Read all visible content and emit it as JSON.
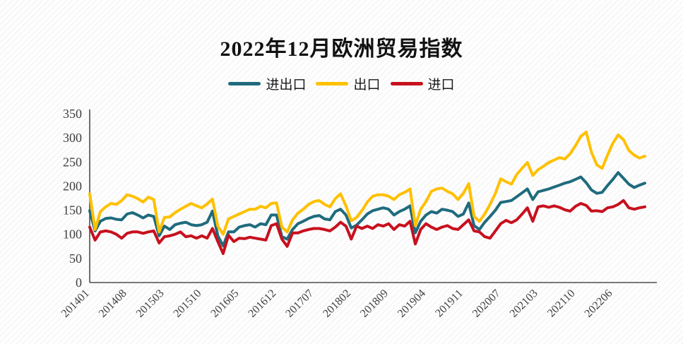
{
  "chart_data": {
    "type": "line",
    "title": "2022年12月欧洲贸易指数",
    "legend_position": "top",
    "grid": false,
    "axis_color": "#4d4d4d",
    "ylim": [
      0,
      350
    ],
    "yticks": [
      0,
      50,
      100,
      150,
      200,
      250,
      300,
      350
    ],
    "xtick_every": 7,
    "xtick_labels_shown": [
      "201401",
      "201408",
      "201503",
      "201510",
      "201605",
      "201612",
      "201707",
      "201802",
      "201809",
      "201904",
      "201911",
      "202007",
      "202103",
      "202110",
      "202206"
    ],
    "categories": [
      "201401",
      "201402",
      "201403",
      "201404",
      "201405",
      "201406",
      "201407",
      "201408",
      "201409",
      "201410",
      "201411",
      "201412",
      "201501",
      "201502",
      "201503",
      "201504",
      "201505",
      "201506",
      "201507",
      "201508",
      "201509",
      "201510",
      "201511",
      "201512",
      "201601",
      "201602",
      "201603",
      "201604",
      "201605",
      "201606",
      "201607",
      "201608",
      "201609",
      "201610",
      "201611",
      "201612",
      "201701",
      "201702",
      "201703",
      "201704",
      "201705",
      "201706",
      "201707",
      "201708",
      "201709",
      "201710",
      "201711",
      "201712",
      "201801",
      "201802",
      "201803",
      "201804",
      "201805",
      "201806",
      "201807",
      "201808",
      "201809",
      "201810",
      "201811",
      "201812",
      "201901",
      "201902",
      "201903",
      "201904",
      "201905",
      "201906",
      "201907",
      "201908",
      "201909",
      "201910",
      "201911",
      "201912",
      "202002",
      "202003",
      "202004",
      "202005",
      "202006",
      "202007",
      "202008",
      "202009",
      "202010",
      "202011",
      "202012",
      "202102",
      "202103",
      "202104",
      "202105",
      "202106",
      "202107",
      "202108",
      "202109",
      "202110",
      "202111",
      "202112",
      "202202",
      "202203",
      "202204",
      "202205",
      "202206",
      "202207",
      "202208",
      "202209",
      "202210",
      "202211",
      "202212"
    ],
    "series": [
      {
        "name": "进出口",
        "color": "#1F6B7D",
        "values": [
          149,
          107,
          127,
          133,
          134,
          131,
          130,
          142,
          145,
          140,
          134,
          140,
          137,
          97,
          117,
          110,
          120,
          123,
          125,
          120,
          118,
          120,
          125,
          148,
          97,
          76,
          105,
          105,
          115,
          118,
          120,
          115,
          122,
          120,
          140,
          140,
          95,
          90,
          110,
          122,
          127,
          133,
          137,
          139,
          132,
          130,
          147,
          152,
          140,
          113,
          119,
          130,
          142,
          149,
          152,
          155,
          152,
          140,
          147,
          152,
          159,
          103,
          127,
          140,
          147,
          144,
          152,
          150,
          147,
          137,
          142,
          165,
          118,
          110,
          125,
          137,
          150,
          166,
          168,
          170,
          178,
          186,
          194,
          172,
          188,
          191,
          194,
          198,
          202,
          206,
          209,
          214,
          219,
          207,
          192,
          185,
          187,
          201,
          214,
          228,
          216,
          204,
          197,
          202,
          206
        ]
      },
      {
        "name": "出口",
        "color": "#FFC000",
        "values": [
          184,
          110,
          147,
          157,
          164,
          162,
          170,
          182,
          179,
          174,
          167,
          177,
          172,
          105,
          135,
          136,
          145,
          152,
          158,
          164,
          159,
          155,
          163,
          173,
          117,
          100,
          132,
          137,
          142,
          147,
          152,
          152,
          158,
          155,
          164,
          165,
          115,
          105,
          130,
          144,
          152,
          162,
          168,
          170,
          162,
          157,
          174,
          184,
          159,
          128,
          135,
          149,
          167,
          179,
          182,
          182,
          179,
          172,
          182,
          187,
          194,
          118,
          152,
          168,
          189,
          194,
          196,
          189,
          184,
          172,
          185,
          205,
          137,
          127,
          142,
          162,
          185,
          215,
          209,
          204,
          224,
          237,
          249,
          222,
          234,
          241,
          249,
          254,
          259,
          256,
          267,
          284,
          303,
          312,
          270,
          244,
          237,
          264,
          289,
          306,
          296,
          274,
          264,
          258,
          262
        ]
      },
      {
        "name": "进口",
        "color": "#C8101E",
        "values": [
          115,
          88,
          105,
          107,
          105,
          100,
          92,
          102,
          105,
          105,
          102,
          105,
          107,
          82,
          95,
          97,
          100,
          105,
          95,
          97,
          92,
          97,
          92,
          112,
          85,
          60,
          98,
          85,
          92,
          91,
          94,
          92,
          90,
          88,
          118,
          122,
          90,
          75,
          103,
          103,
          107,
          110,
          112,
          112,
          110,
          107,
          115,
          125,
          117,
          90,
          117,
          112,
          117,
          112,
          120,
          117,
          122,
          110,
          120,
          117,
          127,
          80,
          110,
          122,
          115,
          110,
          115,
          118,
          112,
          110,
          120,
          130,
          107,
          105,
          95,
          92,
          107,
          122,
          129,
          124,
          130,
          142,
          155,
          127,
          157,
          159,
          156,
          159,
          156,
          151,
          148,
          158,
          164,
          160,
          148,
          149,
          147,
          155,
          157,
          162,
          170,
          155,
          152,
          155,
          157
        ]
      }
    ]
  }
}
